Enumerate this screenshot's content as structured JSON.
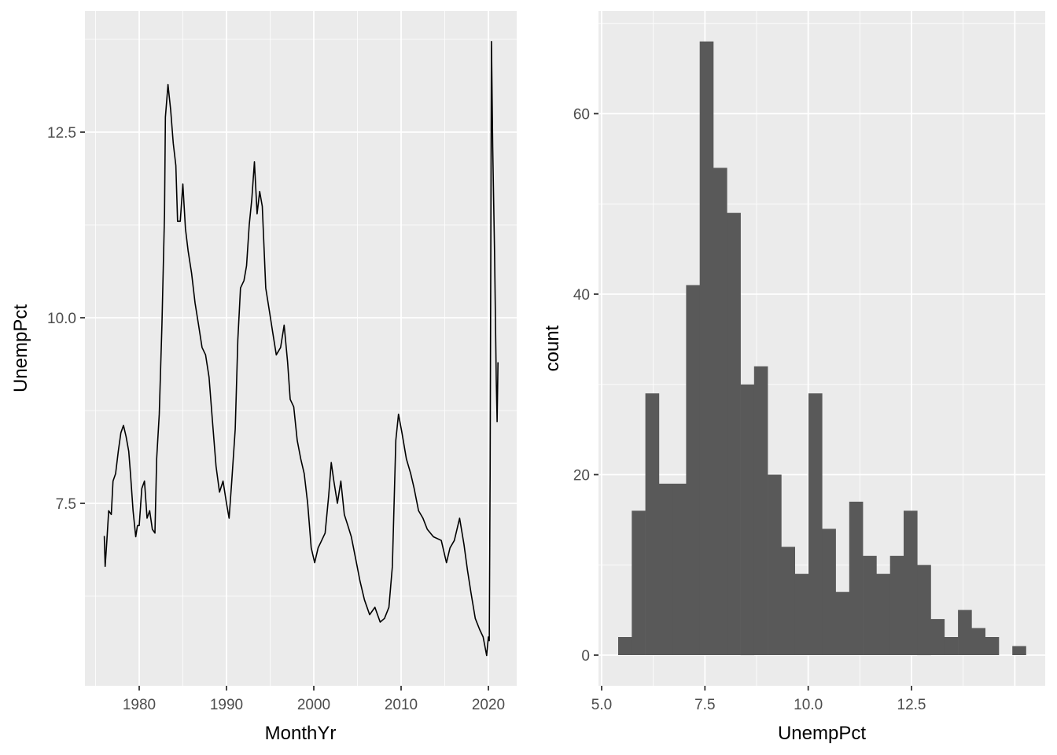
{
  "chart_data": [
    {
      "type": "line",
      "panel": "left",
      "title": "",
      "xlabel": "MonthYr",
      "ylabel": "UnempPct",
      "xlim": [
        1974.2,
        2023.2
      ],
      "ylim": [
        5.05,
        14.1
      ],
      "x_ticks": [
        1980,
        1990,
        2000,
        2010,
        2020
      ],
      "x_tick_labels": [
        "1980",
        "1990",
        "2000",
        "2010",
        "2020"
      ],
      "y_ticks": [
        7.5,
        10.0,
        12.5
      ],
      "y_tick_labels": [
        "7.5",
        "10.0",
        "12.5"
      ],
      "grid": true,
      "colors": {
        "panel_bg": "#EBEBEB",
        "grid": "#FFFFFF",
        "line": "#000000",
        "tick": "#333333",
        "tick_label": "#4D4D4D"
      },
      "series": [
        {
          "name": "UnempPct",
          "x": [
            1976.0,
            1976.1,
            1976.3,
            1976.5,
            1976.8,
            1977.0,
            1977.3,
            1977.6,
            1977.9,
            1978.2,
            1978.5,
            1978.8,
            1979.0,
            1979.3,
            1979.6,
            1979.8,
            1980.0,
            1980.3,
            1980.6,
            1980.9,
            1981.2,
            1981.5,
            1981.8,
            1982.0,
            1982.3,
            1982.6,
            1982.9,
            1983.0,
            1983.3,
            1983.6,
            1983.9,
            1984.2,
            1984.4,
            1984.7,
            1985.0,
            1985.3,
            1985.6,
            1986.0,
            1986.4,
            1986.8,
            1987.2,
            1987.6,
            1988.0,
            1988.4,
            1988.8,
            1989.2,
            1989.6,
            1990.0,
            1990.3,
            1990.6,
            1991.0,
            1991.3,
            1991.6,
            1992.0,
            1992.3,
            1992.6,
            1992.9,
            1993.2,
            1993.5,
            1993.8,
            1994.1,
            1994.5,
            1994.9,
            1995.3,
            1995.7,
            1996.2,
            1996.6,
            1997.0,
            1997.3,
            1997.7,
            1998.1,
            1998.5,
            1998.9,
            1999.3,
            1999.7,
            2000.1,
            2000.5,
            2000.9,
            2001.3,
            2001.7,
            2002.0,
            2002.3,
            2002.7,
            2003.1,
            2003.5,
            2003.9,
            2004.3,
            2004.8,
            2005.3,
            2005.8,
            2006.4,
            2007.0,
            2007.6,
            2008.1,
            2008.6,
            2009.0,
            2009.4,
            2009.7,
            2010.1,
            2010.6,
            2011.1,
            2011.5,
            2012.0,
            2012.5,
            2013.0,
            2013.7,
            2014.6,
            2015.2,
            2015.6,
            2016.1,
            2016.7,
            2017.2,
            2017.6,
            2018.0,
            2018.5,
            2019.0,
            2019.4,
            2019.8,
            2020.0,
            2020.1,
            2020.2,
            2020.35,
            2020.5,
            2020.7,
            2020.9,
            2021.0,
            2021.1
          ],
          "values": [
            7.06,
            6.65,
            7.0,
            7.4,
            7.35,
            7.8,
            7.9,
            8.2,
            8.45,
            8.55,
            8.4,
            8.2,
            7.9,
            7.4,
            7.05,
            7.2,
            7.2,
            7.7,
            7.8,
            7.3,
            7.4,
            7.15,
            7.1,
            8.1,
            8.7,
            9.9,
            11.4,
            12.7,
            13.14,
            12.8,
            12.35,
            12.05,
            11.3,
            11.3,
            11.8,
            11.2,
            10.9,
            10.6,
            10.2,
            9.9,
            9.6,
            9.5,
            9.2,
            8.6,
            8.0,
            7.65,
            7.8,
            7.5,
            7.3,
            7.8,
            8.5,
            9.7,
            10.4,
            10.5,
            10.7,
            11.25,
            11.6,
            12.1,
            11.4,
            11.7,
            11.5,
            10.4,
            10.1,
            9.8,
            9.5,
            9.6,
            9.9,
            9.4,
            8.9,
            8.8,
            8.35,
            8.1,
            7.9,
            7.5,
            6.9,
            6.7,
            6.9,
            7.0,
            7.1,
            7.6,
            8.05,
            7.8,
            7.5,
            7.8,
            7.35,
            7.2,
            7.05,
            6.75,
            6.45,
            6.2,
            6.0,
            6.1,
            5.9,
            5.95,
            6.1,
            6.65,
            8.35,
            8.7,
            8.45,
            8.1,
            7.9,
            7.7,
            7.4,
            7.3,
            7.15,
            7.05,
            7.0,
            6.7,
            6.9,
            7.0,
            7.3,
            6.95,
            6.6,
            6.3,
            5.95,
            5.8,
            5.7,
            5.45,
            5.7,
            5.65,
            7.9,
            13.72,
            12.3,
            10.9,
            9.17,
            8.6,
            9.4
          ]
        }
      ]
    },
    {
      "type": "bar",
      "subtype": "histogram",
      "panel": "right",
      "title": "",
      "xlabel": "UnempPct",
      "ylabel": "count",
      "xlim": [
        4.92,
        14.52
      ],
      "ylim": [
        -3.4,
        71.4
      ],
      "x_ticks": [
        5.0,
        7.5,
        10.0,
        12.5
      ],
      "x_tick_labels": [
        "5.0",
        "7.5",
        "10.0",
        "12.5"
      ],
      "y_ticks": [
        0,
        20,
        40,
        60
      ],
      "y_tick_labels": [
        "0",
        "20",
        "40",
        "60"
      ],
      "grid": true,
      "bins": 30,
      "bin_start": 5.4,
      "bin_width": 0.329,
      "colors": {
        "panel_bg": "#EBEBEB",
        "grid": "#FFFFFF",
        "bar": "#595959"
      },
      "values": [
        2,
        16,
        29,
        19,
        19,
        41,
        68,
        54,
        49,
        30,
        32,
        20,
        12,
        9,
        29,
        14,
        7,
        17,
        11,
        9,
        11,
        16,
        10,
        4,
        2,
        5,
        3,
        2,
        0,
        1
      ]
    }
  ],
  "left_panel": {
    "xlabel": "MonthYr",
    "ylabel": "UnempPct",
    "x_tick_labels": [
      "1980",
      "1990",
      "2000",
      "2010",
      "2020"
    ],
    "y_tick_labels": [
      "7.5",
      "10.0",
      "12.5"
    ]
  },
  "right_panel": {
    "xlabel": "UnempPct",
    "ylabel": "count",
    "x_tick_labels": [
      "5.0",
      "7.5",
      "10.0",
      "12.5"
    ],
    "y_tick_labels": [
      "0",
      "20",
      "40",
      "60"
    ]
  }
}
